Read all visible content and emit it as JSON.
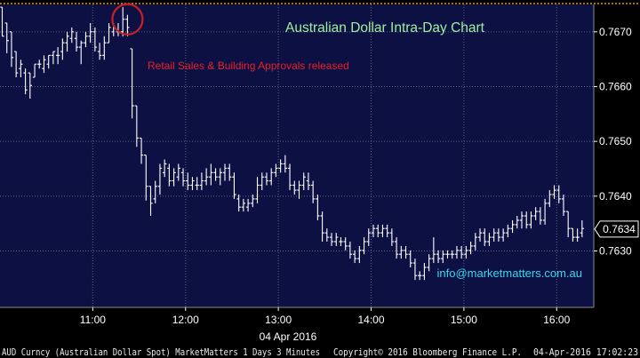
{
  "chart_data": {
    "type": "ohlc",
    "title": "Australian Dollar Intra-Day Chart",
    "annotation": "Retail Sales & Building Approvals released",
    "watermark": "info@marketmatters.com.au",
    "date_label": "04 Apr 2016",
    "last_value_label": "0.7634",
    "y_ticks": [
      "0.7670",
      "0.7660",
      "0.7650",
      "0.7640",
      "0.7630"
    ],
    "x_ticks": [
      "11:00",
      "12:00",
      "13:00",
      "14:00",
      "15:00",
      "16:00"
    ],
    "ylim": [
      0.76197,
      0.7675
    ],
    "x_range": [
      "10:00",
      "16:24"
    ],
    "bar_minutes": 3,
    "grid": true,
    "colors": {
      "plot_bg": "#0d1043",
      "bars": "#ffffff",
      "title": "#9ff29f",
      "annotation": "#e8202a",
      "watermark": "#3ad7ee",
      "grid": "#5f627c",
      "top_line": "#e8931b",
      "circle": "#c72127"
    },
    "bars": [
      [
        "10:00",
        0.76745,
        0.76745,
        0.76692,
        0.76692
      ],
      [
        "10:03",
        0.76716,
        0.76716,
        0.76661,
        0.76684
      ],
      [
        "10:06",
        0.767,
        0.767,
        0.76636,
        0.76653
      ],
      [
        "10:09",
        0.76664,
        0.76664,
        0.76617,
        0.76625
      ],
      [
        "10:12",
        0.76633,
        0.76649,
        0.76617,
        0.76641
      ],
      [
        "10:15",
        0.76625,
        0.76633,
        0.76586,
        0.76594
      ],
      [
        "10:18",
        0.76625,
        0.76625,
        0.76578,
        0.76602
      ],
      [
        "10:21",
        0.76617,
        0.76641,
        0.76617,
        0.76641
      ],
      [
        "10:24",
        0.76641,
        0.76649,
        0.76633,
        0.76641
      ],
      [
        "10:27",
        0.76633,
        0.76657,
        0.76625,
        0.76649
      ],
      [
        "10:30",
        0.76641,
        0.76657,
        0.76633,
        0.76657
      ],
      [
        "10:33",
        0.76657,
        0.76664,
        0.76641,
        0.76664
      ],
      [
        "10:36",
        0.76657,
        0.76672,
        0.76641,
        0.76657
      ],
      [
        "10:39",
        0.76664,
        0.76688,
        0.76649,
        0.7668
      ],
      [
        "10:42",
        0.7668,
        0.767,
        0.76664,
        0.76692
      ],
      [
        "10:45",
        0.76688,
        0.76708,
        0.7668,
        0.767
      ],
      [
        "10:48",
        0.76688,
        0.767,
        0.76664,
        0.76672
      ],
      [
        "10:51",
        0.76672,
        0.76684,
        0.76641,
        0.7668
      ],
      [
        "10:54",
        0.7668,
        0.767,
        0.76672,
        0.76692
      ],
      [
        "10:57",
        0.76692,
        0.76716,
        0.7668,
        0.767
      ],
      [
        "11:00",
        0.767,
        0.76708,
        0.76664,
        0.76672
      ],
      [
        "11:03",
        0.76664,
        0.7668,
        0.76649,
        0.76657
      ],
      [
        "11:06",
        0.76657,
        0.76692,
        0.76649,
        0.7668
      ],
      [
        "11:09",
        0.7668,
        0.76716,
        0.7668,
        0.76708
      ],
      [
        "11:12",
        0.767,
        0.76716,
        0.76692,
        0.76708
      ],
      [
        "11:15",
        0.767,
        0.76716,
        0.76692,
        0.767
      ],
      [
        "11:18",
        0.767,
        0.76745,
        0.76692,
        0.76723
      ],
      [
        "11:21",
        0.76723,
        0.76731,
        0.76692,
        0.76708
      ],
      [
        "11:24",
        0.76669,
        0.76669,
        0.76542,
        0.76565
      ],
      [
        "11:27",
        0.76565,
        0.76565,
        0.7649,
        0.76506
      ],
      [
        "11:30",
        0.76506,
        0.76506,
        0.76459,
        0.76475
      ],
      [
        "11:33",
        0.76475,
        0.76475,
        0.76392,
        0.76418
      ],
      [
        "11:36",
        0.76418,
        0.76418,
        0.76364,
        0.76387
      ],
      [
        "11:39",
        0.76395,
        0.76428,
        0.76387,
        0.76418
      ],
      [
        "11:42",
        0.76418,
        0.76459,
        0.76403,
        0.76451
      ],
      [
        "11:45",
        0.76443,
        0.76467,
        0.76435,
        0.76459
      ],
      [
        "11:48",
        0.76451,
        0.76459,
        0.76418,
        0.76428
      ],
      [
        "11:51",
        0.76428,
        0.76451,
        0.76418,
        0.76443
      ],
      [
        "11:54",
        0.76435,
        0.76459,
        0.76428,
        0.76451
      ],
      [
        "11:57",
        0.76443,
        0.76451,
        0.76418,
        0.76428
      ],
      [
        "12:00",
        0.76428,
        0.76443,
        0.76411,
        0.7642
      ],
      [
        "12:03",
        0.7642,
        0.76435,
        0.76411,
        0.76428
      ],
      [
        "12:06",
        0.7642,
        0.76435,
        0.76411,
        0.7642
      ],
      [
        "12:09",
        0.7642,
        0.76443,
        0.76411,
        0.76428
      ],
      [
        "12:12",
        0.76428,
        0.76451,
        0.7642,
        0.76435
      ],
      [
        "12:15",
        0.76435,
        0.76459,
        0.7642,
        0.76443
      ],
      [
        "12:18",
        0.76443,
        0.76451,
        0.76428,
        0.76435
      ],
      [
        "12:21",
        0.76435,
        0.76451,
        0.7642,
        0.76443
      ],
      [
        "12:24",
        0.76443,
        0.76459,
        0.76428,
        0.76451
      ],
      [
        "12:27",
        0.76451,
        0.76459,
        0.76428,
        0.76435
      ],
      [
        "12:30",
        0.76435,
        0.76443,
        0.76395,
        0.76403
      ],
      [
        "12:33",
        0.76395,
        0.76403,
        0.76372,
        0.7638
      ],
      [
        "12:36",
        0.7638,
        0.76395,
        0.76372,
        0.76387
      ],
      [
        "12:39",
        0.7638,
        0.76395,
        0.76372,
        0.76387
      ],
      [
        "12:42",
        0.76387,
        0.76403,
        0.7638,
        0.76395
      ],
      [
        "12:45",
        0.76395,
        0.76435,
        0.76387,
        0.7642
      ],
      [
        "12:48",
        0.7642,
        0.76443,
        0.76411,
        0.76435
      ],
      [
        "12:51",
        0.76435,
        0.76443,
        0.7642,
        0.76428
      ],
      [
        "12:54",
        0.76428,
        0.76451,
        0.7642,
        0.76443
      ],
      [
        "12:57",
        0.76443,
        0.76459,
        0.76435,
        0.76451
      ],
      [
        "13:00",
        0.76451,
        0.76467,
        0.76443,
        0.76459
      ],
      [
        "13:03",
        0.76459,
        0.76475,
        0.76443,
        0.76451
      ],
      [
        "13:06",
        0.76451,
        0.76459,
        0.76411,
        0.7642
      ],
      [
        "13:09",
        0.7642,
        0.76428,
        0.76403,
        0.76411
      ],
      [
        "13:12",
        0.76411,
        0.76428,
        0.76395,
        0.7642
      ],
      [
        "13:15",
        0.7642,
        0.76443,
        0.76411,
        0.76435
      ],
      [
        "13:18",
        0.76428,
        0.76443,
        0.76411,
        0.7642
      ],
      [
        "13:21",
        0.7642,
        0.76428,
        0.76387,
        0.76395
      ],
      [
        "13:24",
        0.76395,
        0.76403,
        0.76356,
        0.76364
      ],
      [
        "13:27",
        0.76364,
        0.76372,
        0.76317,
        0.76333
      ],
      [
        "13:30",
        0.76333,
        0.76341,
        0.76317,
        0.76325
      ],
      [
        "13:33",
        0.76325,
        0.76333,
        0.76309,
        0.76317
      ],
      [
        "13:36",
        0.76317,
        0.76333,
        0.76309,
        0.76325
      ],
      [
        "13:39",
        0.76317,
        0.76325,
        0.76309,
        0.76317
      ],
      [
        "13:42",
        0.76317,
        0.76325,
        0.76301,
        0.76309
      ],
      [
        "13:45",
        0.76309,
        0.76317,
        0.76286,
        0.76294
      ],
      [
        "13:48",
        0.76294,
        0.76301,
        0.76278,
        0.76286
      ],
      [
        "13:51",
        0.76286,
        0.76309,
        0.76278,
        0.76301
      ],
      [
        "13:54",
        0.76301,
        0.76325,
        0.76294,
        0.76317
      ],
      [
        "13:57",
        0.76317,
        0.76341,
        0.76309,
        0.76333
      ],
      [
        "14:00",
        0.76333,
        0.76348,
        0.76325,
        0.76341
      ],
      [
        "14:03",
        0.76341,
        0.76348,
        0.76325,
        0.76333
      ],
      [
        "14:06",
        0.76333,
        0.76348,
        0.76325,
        0.76341
      ],
      [
        "14:09",
        0.76341,
        0.76348,
        0.76325,
        0.76333
      ],
      [
        "14:12",
        0.76333,
        0.76341,
        0.76309,
        0.76317
      ],
      [
        "14:15",
        0.76317,
        0.76325,
        0.76286,
        0.76294
      ],
      [
        "14:18",
        0.76294,
        0.76309,
        0.76286,
        0.76301
      ],
      [
        "14:21",
        0.76301,
        0.76309,
        0.76286,
        0.76294
      ],
      [
        "14:24",
        0.76294,
        0.76301,
        0.7627,
        0.76278
      ],
      [
        "14:27",
        0.76278,
        0.76286,
        0.76247,
        0.76255
      ],
      [
        "14:30",
        0.76255,
        0.76263,
        0.76247,
        0.76255
      ],
      [
        "14:33",
        0.76255,
        0.76278,
        0.76247,
        0.7627
      ],
      [
        "14:36",
        0.7627,
        0.76294,
        0.76263,
        0.76286
      ],
      [
        "14:39",
        0.76286,
        0.76325,
        0.76278,
        0.76294
      ],
      [
        "14:42",
        0.76294,
        0.76301,
        0.76278,
        0.76286
      ],
      [
        "14:45",
        0.76286,
        0.76301,
        0.76278,
        0.76294
      ],
      [
        "14:48",
        0.76294,
        0.76301,
        0.76286,
        0.76294
      ],
      [
        "14:51",
        0.76294,
        0.76301,
        0.76286,
        0.76294
      ],
      [
        "14:54",
        0.76294,
        0.76309,
        0.76286,
        0.76301
      ],
      [
        "14:57",
        0.76301,
        0.76309,
        0.76286,
        0.76294
      ],
      [
        "15:00",
        0.76294,
        0.76309,
        0.76286,
        0.76301
      ],
      [
        "15:03",
        0.76301,
        0.76317,
        0.76294,
        0.76309
      ],
      [
        "15:06",
        0.76309,
        0.76333,
        0.76301,
        0.76325
      ],
      [
        "15:09",
        0.76325,
        0.76341,
        0.76317,
        0.76333
      ],
      [
        "15:12",
        0.76333,
        0.76341,
        0.76309,
        0.76317
      ],
      [
        "15:15",
        0.76317,
        0.76333,
        0.76309,
        0.76325
      ],
      [
        "15:18",
        0.76325,
        0.76341,
        0.76317,
        0.76333
      ],
      [
        "15:21",
        0.76333,
        0.76341,
        0.76317,
        0.76325
      ],
      [
        "15:24",
        0.76325,
        0.76341,
        0.76317,
        0.76333
      ],
      [
        "15:27",
        0.76333,
        0.76348,
        0.76325,
        0.76341
      ],
      [
        "15:30",
        0.76341,
        0.76356,
        0.76333,
        0.76348
      ],
      [
        "15:33",
        0.76348,
        0.76364,
        0.76341,
        0.76356
      ],
      [
        "15:36",
        0.76356,
        0.76372,
        0.76341,
        0.76364
      ],
      [
        "15:39",
        0.76364,
        0.76372,
        0.76341,
        0.76348
      ],
      [
        "15:42",
        0.76348,
        0.76372,
        0.76341,
        0.76364
      ],
      [
        "15:45",
        0.76364,
        0.7638,
        0.76356,
        0.76372
      ],
      [
        "15:48",
        0.76372,
        0.7638,
        0.76348,
        0.76356
      ],
      [
        "15:51",
        0.76356,
        0.76395,
        0.76348,
        0.76387
      ],
      [
        "15:54",
        0.76387,
        0.76411,
        0.7638,
        0.76403
      ],
      [
        "15:57",
        0.76403,
        0.7642,
        0.76395,
        0.76411
      ],
      [
        "16:00",
        0.76411,
        0.7642,
        0.76387,
        0.76395
      ],
      [
        "16:03",
        0.76395,
        0.76403,
        0.76364,
        0.76372
      ],
      [
        "16:06",
        0.76372,
        0.76372,
        0.76325,
        0.76341
      ],
      [
        "16:09",
        0.76341,
        0.76341,
        0.76317,
        0.76325
      ],
      [
        "16:12",
        0.76325,
        0.76341,
        0.76317,
        0.76325
      ],
      [
        "16:15",
        0.76333,
        0.76356,
        0.76325,
        0.76341
      ]
    ],
    "event_bar_time": "11:21"
  },
  "footer": {
    "left": "AUD Curncy (Australian Dollar Spot) MarketMatters 1 Days 3 Minutes",
    "center": "Copyright© 2016 Bloomberg Finance L.P.",
    "right": "04-Apr-2016 17:02:23"
  }
}
